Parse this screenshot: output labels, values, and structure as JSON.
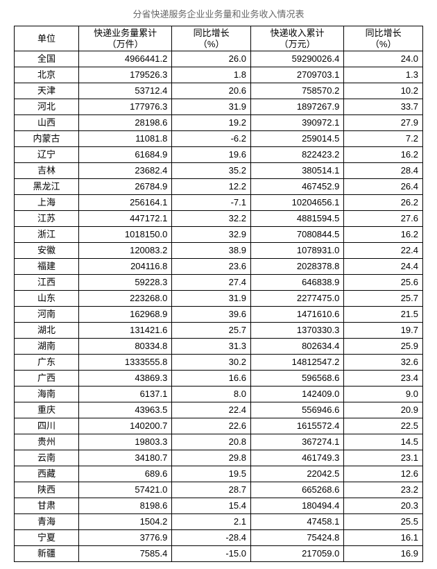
{
  "title": "分省快递服务企业业务量和业务收入情况表",
  "columns": {
    "unit": "单位",
    "volume": "快递业务量累计\n（万件）",
    "volume_growth": "同比增长\n（%）",
    "revenue": "快递收入累计\n（万元）",
    "revenue_growth": "同比增长\n（%）"
  },
  "rows": [
    {
      "unit": "全国",
      "volume": "4966441.2",
      "volume_growth": "26.0",
      "revenue": "59290026.4",
      "revenue_growth": "24.0"
    },
    {
      "unit": "北京",
      "volume": "179526.3",
      "volume_growth": "1.8",
      "revenue": "2709703.1",
      "revenue_growth": "1.3"
    },
    {
      "unit": "天津",
      "volume": "53712.4",
      "volume_growth": "20.6",
      "revenue": "758570.2",
      "revenue_growth": "10.2"
    },
    {
      "unit": "河北",
      "volume": "177976.3",
      "volume_growth": "31.9",
      "revenue": "1897267.9",
      "revenue_growth": "33.7"
    },
    {
      "unit": "山西",
      "volume": "28198.6",
      "volume_growth": "19.2",
      "revenue": "390972.1",
      "revenue_growth": "27.9"
    },
    {
      "unit": "内蒙古",
      "volume": "11081.8",
      "volume_growth": "-6.2",
      "revenue": "259014.5",
      "revenue_growth": "7.2"
    },
    {
      "unit": "辽宁",
      "volume": "61684.9",
      "volume_growth": "19.6",
      "revenue": "822423.2",
      "revenue_growth": "16.2"
    },
    {
      "unit": "吉林",
      "volume": "23682.4",
      "volume_growth": "35.2",
      "revenue": "380514.1",
      "revenue_growth": "28.4"
    },
    {
      "unit": "黑龙江",
      "volume": "26784.9",
      "volume_growth": "12.2",
      "revenue": "467452.9",
      "revenue_growth": "26.4"
    },
    {
      "unit": "上海",
      "volume": "256164.1",
      "volume_growth": "-7.1",
      "revenue": "10204656.1",
      "revenue_growth": "26.2"
    },
    {
      "unit": "江苏",
      "volume": "447172.1",
      "volume_growth": "32.2",
      "revenue": "4881594.5",
      "revenue_growth": "27.6"
    },
    {
      "unit": "浙江",
      "volume": "1018150.0",
      "volume_growth": "32.9",
      "revenue": "7080844.5",
      "revenue_growth": "16.2"
    },
    {
      "unit": "安徽",
      "volume": "120083.2",
      "volume_growth": "38.9",
      "revenue": "1078931.0",
      "revenue_growth": "22.4"
    },
    {
      "unit": "福建",
      "volume": "204116.8",
      "volume_growth": "23.6",
      "revenue": "2028378.8",
      "revenue_growth": "24.4"
    },
    {
      "unit": "江西",
      "volume": "59228.3",
      "volume_growth": "27.4",
      "revenue": "646838.9",
      "revenue_growth": "25.6"
    },
    {
      "unit": "山东",
      "volume": "223268.0",
      "volume_growth": "31.9",
      "revenue": "2277475.0",
      "revenue_growth": "25.7"
    },
    {
      "unit": "河南",
      "volume": "162968.9",
      "volume_growth": "39.6",
      "revenue": "1471610.6",
      "revenue_growth": "21.5"
    },
    {
      "unit": "湖北",
      "volume": "131421.6",
      "volume_growth": "25.7",
      "revenue": "1370330.3",
      "revenue_growth": "19.7"
    },
    {
      "unit": "湖南",
      "volume": "80334.8",
      "volume_growth": "31.3",
      "revenue": "802634.4",
      "revenue_growth": "25.9"
    },
    {
      "unit": "广东",
      "volume": "1333555.8",
      "volume_growth": "30.2",
      "revenue": "14812547.2",
      "revenue_growth": "32.6"
    },
    {
      "unit": "广西",
      "volume": "43869.3",
      "volume_growth": "16.6",
      "revenue": "596568.6",
      "revenue_growth": "23.4"
    },
    {
      "unit": "海南",
      "volume": "6137.1",
      "volume_growth": "8.0",
      "revenue": "142409.0",
      "revenue_growth": "9.0"
    },
    {
      "unit": "重庆",
      "volume": "43963.5",
      "volume_growth": "22.4",
      "revenue": "556946.6",
      "revenue_growth": "20.9"
    },
    {
      "unit": "四川",
      "volume": "140200.7",
      "volume_growth": "22.6",
      "revenue": "1615572.4",
      "revenue_growth": "22.5"
    },
    {
      "unit": "贵州",
      "volume": "19803.3",
      "volume_growth": "20.8",
      "revenue": "367274.1",
      "revenue_growth": "14.5"
    },
    {
      "unit": "云南",
      "volume": "34180.7",
      "volume_growth": "29.8",
      "revenue": "461749.3",
      "revenue_growth": "23.1"
    },
    {
      "unit": "西藏",
      "volume": "689.6",
      "volume_growth": "19.5",
      "revenue": "22042.5",
      "revenue_growth": "12.6"
    },
    {
      "unit": "陕西",
      "volume": "57421.0",
      "volume_growth": "28.7",
      "revenue": "665268.6",
      "revenue_growth": "23.2"
    },
    {
      "unit": "甘肃",
      "volume": "8198.6",
      "volume_growth": "15.4",
      "revenue": "180494.4",
      "revenue_growth": "20.3"
    },
    {
      "unit": "青海",
      "volume": "1504.2",
      "volume_growth": "2.1",
      "revenue": "47458.1",
      "revenue_growth": "25.5"
    },
    {
      "unit": "宁夏",
      "volume": "3776.9",
      "volume_growth": "-28.4",
      "revenue": "75424.8",
      "revenue_growth": "16.1"
    },
    {
      "unit": "新疆",
      "volume": "7585.4",
      "volume_growth": "-15.0",
      "revenue": "217059.0",
      "revenue_growth": "16.9"
    }
  ],
  "style": {
    "border_color": "#000000",
    "title_color": "#666666",
    "font_size_title": 13,
    "font_size_cell": 13,
    "background": "#ffffff"
  }
}
